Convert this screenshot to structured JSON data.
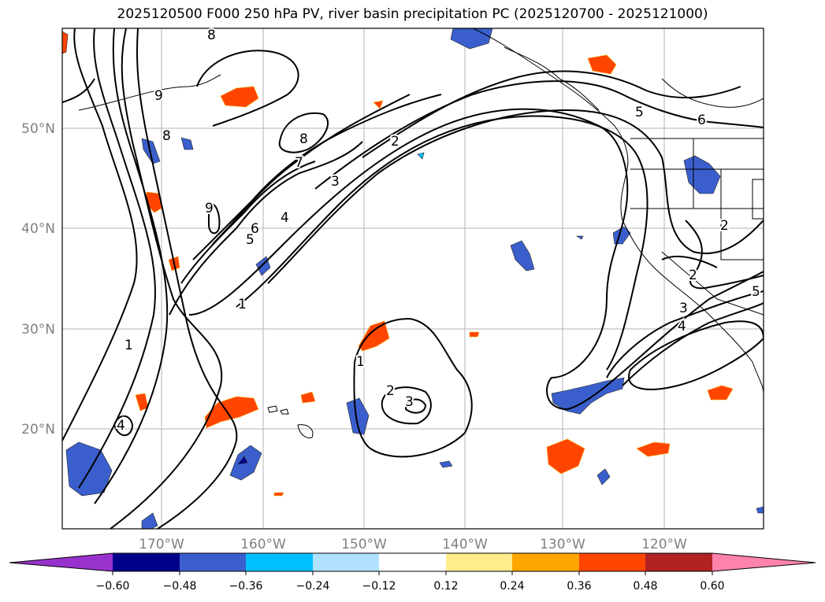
{
  "title": "2025120500 F000 250 hPa PV, river basin precipitation PC (2025120700 - 2025121000)",
  "lat_labels": [
    "50°N",
    "40°N",
    "30°N",
    "20°N"
  ],
  "lon_labels": [
    "170°W",
    "160°W",
    "150°W",
    "140°W",
    "130°W",
    "120°W"
  ],
  "colorbar": {
    "labels": [
      "−0.60",
      "−0.48",
      "−0.36",
      "−0.24",
      "−0.12",
      "0.12",
      "0.24",
      "0.36",
      "0.48",
      "0.60"
    ],
    "colors": [
      "#9932cc",
      "#00008b",
      "#3a5fcd",
      "#00bfff",
      "#b0e2ff",
      "#ffffff",
      "#ffec8b",
      "#ffa500",
      "#ff4500",
      "#b22222",
      "#ff82ab"
    ]
  },
  "contour_labels": [
    "8",
    "9",
    "8",
    "9",
    "8",
    "7",
    "3",
    "2",
    "5",
    "6",
    "4",
    "5",
    "6",
    "1",
    "1",
    "4",
    "1",
    "2",
    "3",
    "2",
    "3",
    "4",
    "2",
    "5"
  ]
}
